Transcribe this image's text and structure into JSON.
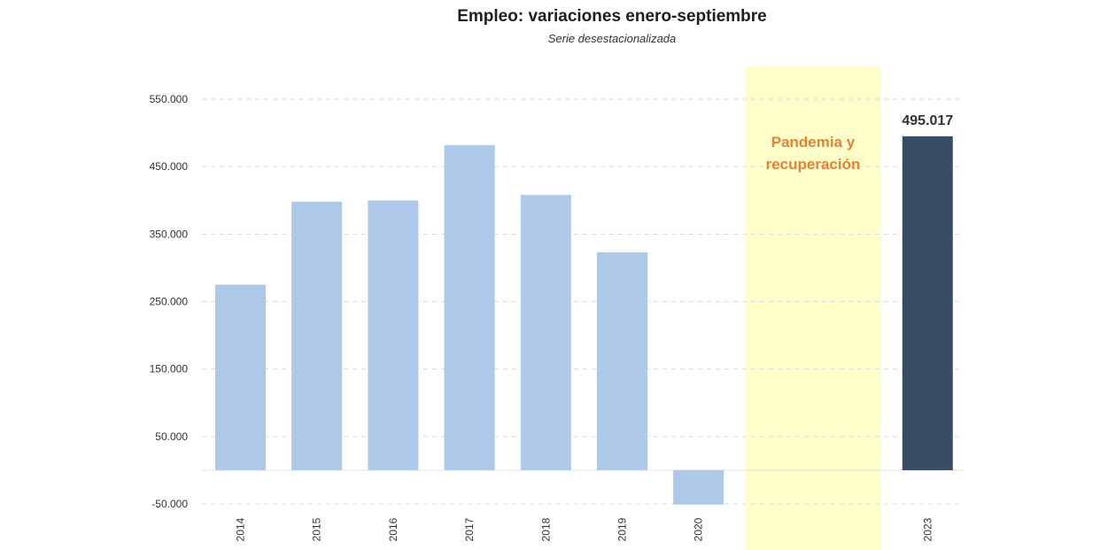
{
  "chart_data": {
    "type": "bar",
    "title": "Empleo: variaciones enero-septiembre",
    "subtitle": "Serie desestacionalizada",
    "categories": [
      "2014",
      "2015",
      "2016",
      "2017",
      "2018",
      "2019",
      "2020",
      "2023"
    ],
    "values": [
      275000,
      398000,
      400000,
      482000,
      408000,
      323000,
      -51000,
      495017
    ],
    "data_labels": [
      {
        "category": "2023",
        "text": "495.017"
      }
    ],
    "ylim": [
      -50000,
      570000
    ],
    "yticks": [
      {
        "value": 550000,
        "label": "550.000"
      },
      {
        "value": 450000,
        "label": "450.000"
      },
      {
        "value": 350000,
        "label": "350.000"
      },
      {
        "value": 250000,
        "label": "250.000"
      },
      {
        "value": 150000,
        "label": "150.000"
      },
      {
        "value": 50000,
        "label": "50.000"
      },
      {
        "value": -50000,
        "label": "-50.000"
      }
    ],
    "grid": true,
    "annotation": {
      "text_line1": "Pandemia y",
      "text_line2": "recuperación",
      "span": [
        "2021",
        "2022"
      ]
    },
    "colors": {
      "bar": "#adc8e8",
      "highlight": "#374d66",
      "band": "#fffdc8",
      "annotation": "#e8803a",
      "grid": "#d9d9d9"
    },
    "highlight_category": "2023"
  }
}
